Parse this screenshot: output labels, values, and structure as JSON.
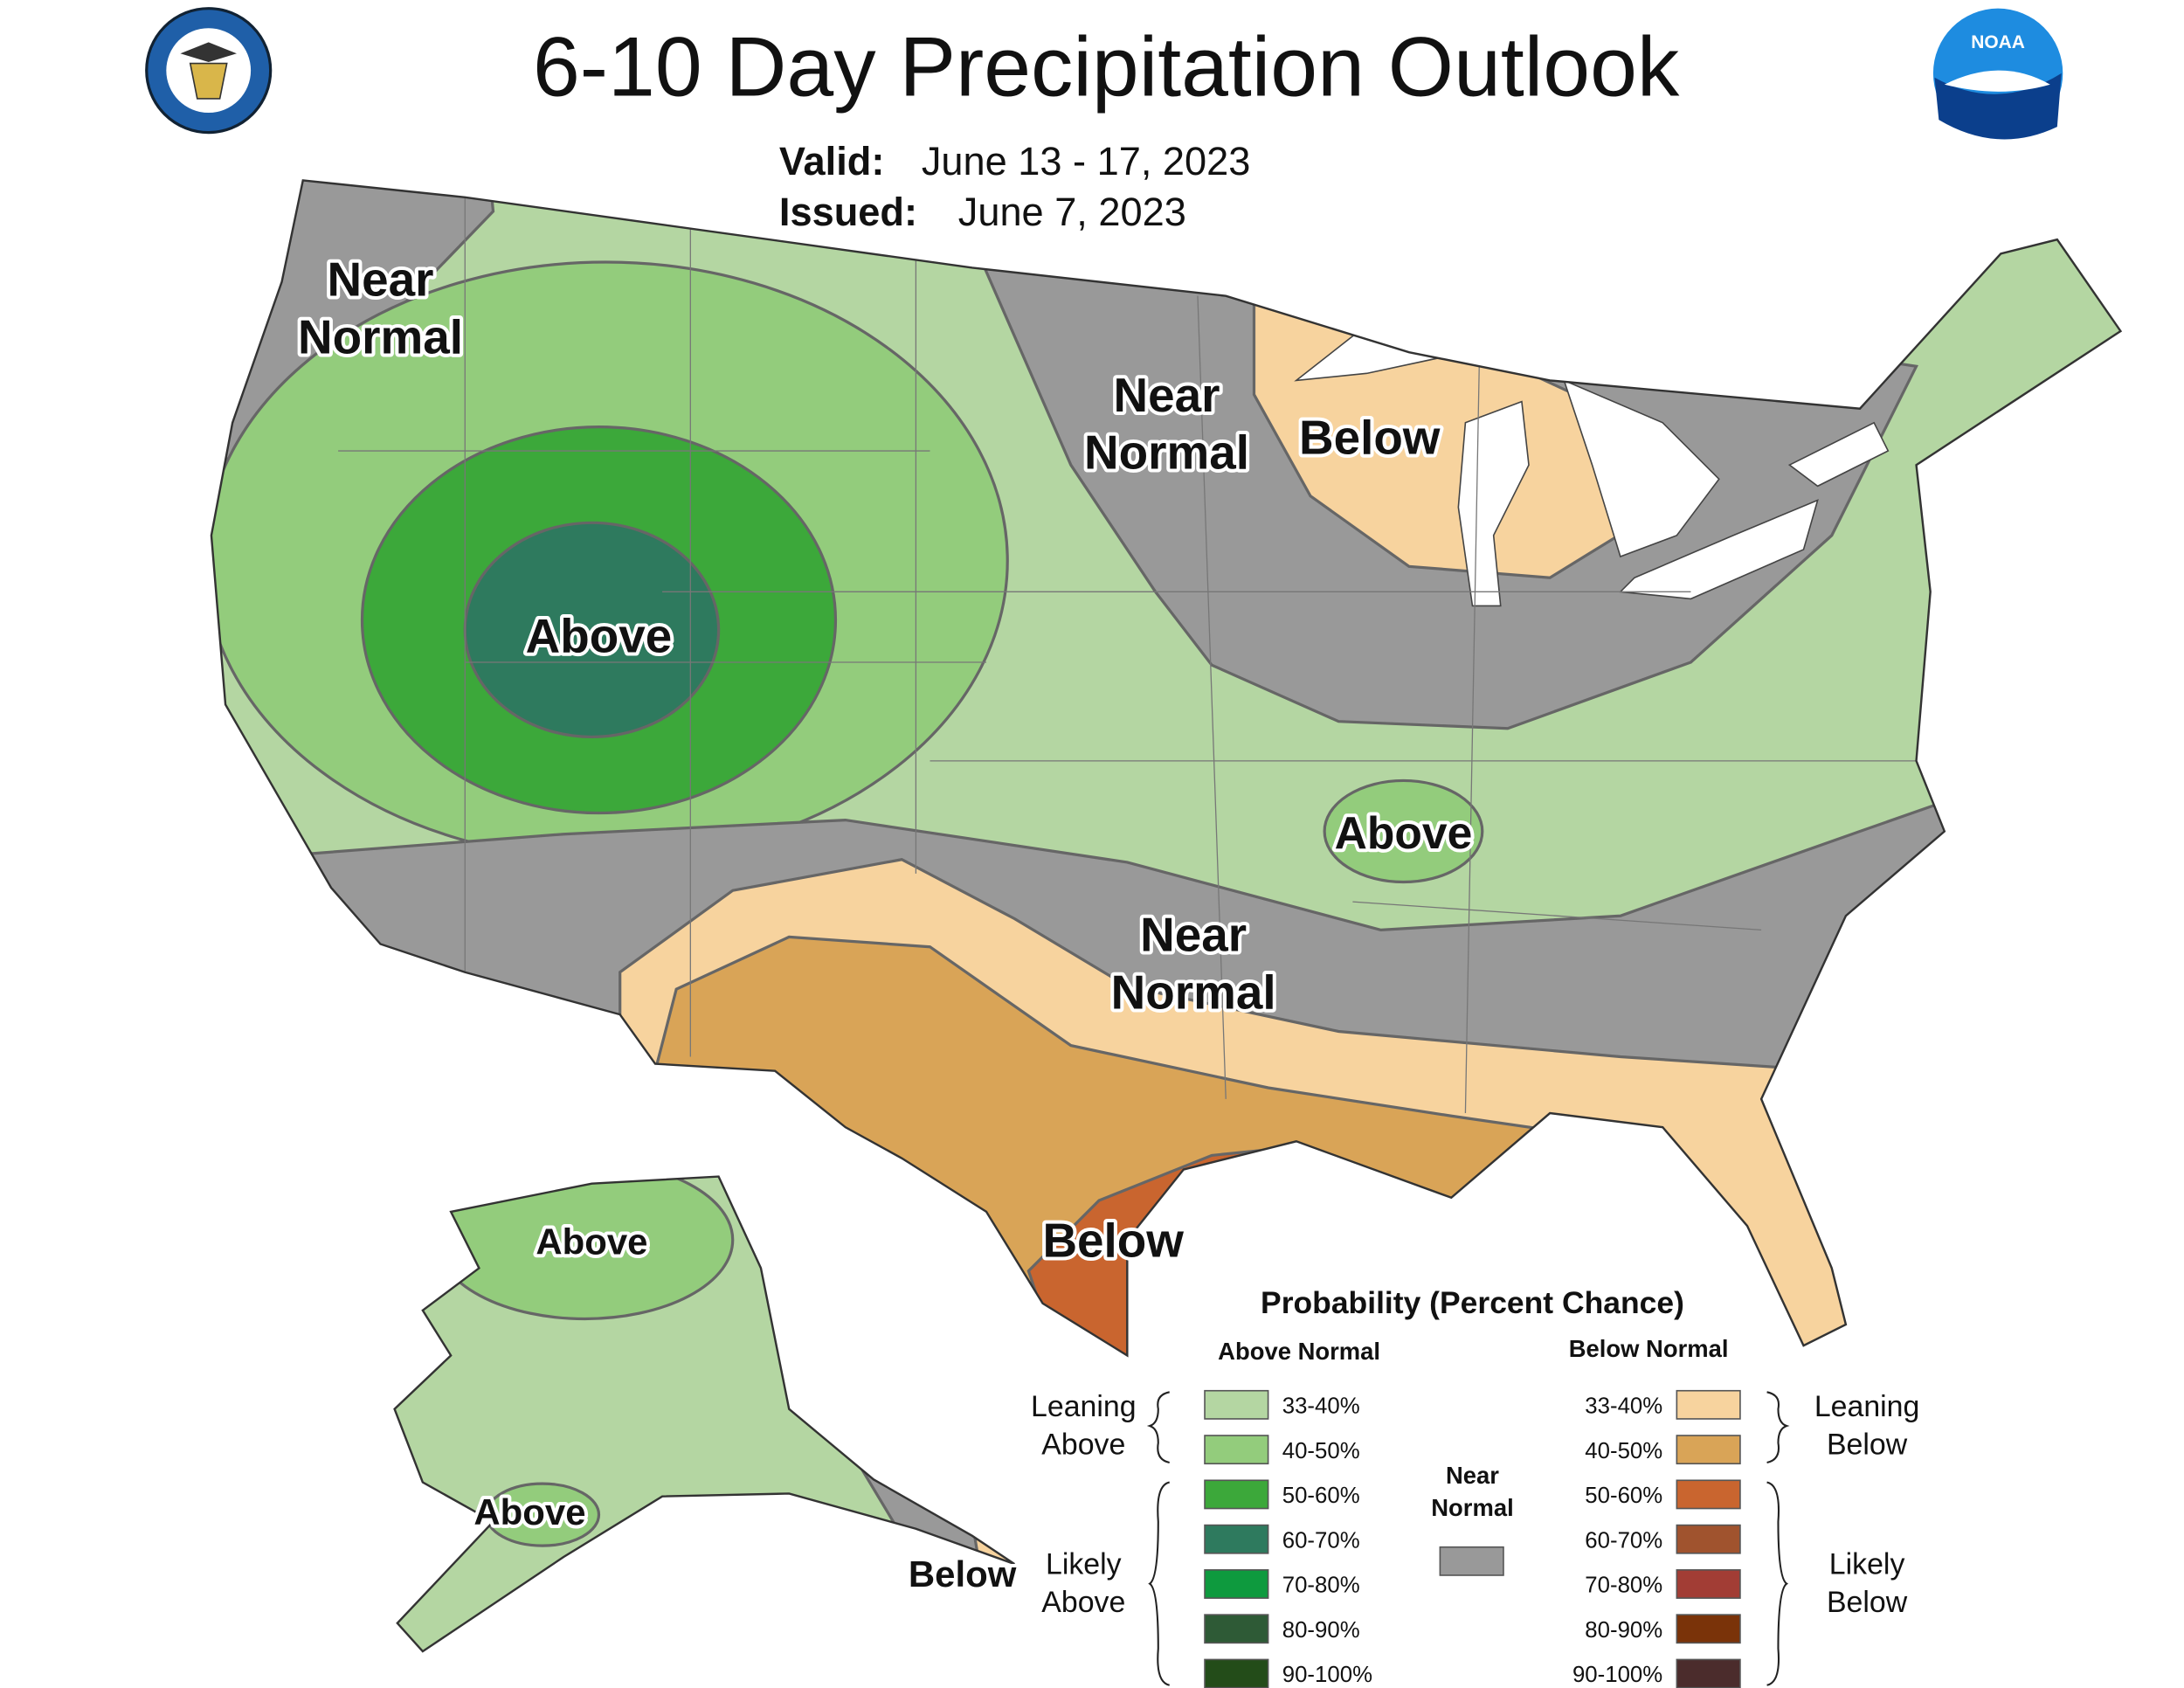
{
  "header": {
    "title": "6-10 Day Precipitation Outlook",
    "valid_label": "Valid:",
    "valid_value": "June 13 - 17, 2023",
    "issued_label": "Issued:",
    "issued_value": "June 7, 2023"
  },
  "logos": {
    "noaa": "NOAA"
  },
  "map_labels": [
    {
      "lines": [
        "Near",
        "Normal"
      ]
    },
    {
      "lines": [
        "Near",
        "Normal"
      ]
    },
    {
      "lines": [
        "Below"
      ]
    },
    {
      "lines": [
        "Above"
      ]
    },
    {
      "lines": [
        "Above"
      ]
    },
    {
      "lines": [
        "Near",
        "Normal"
      ]
    },
    {
      "lines": [
        "Below"
      ]
    },
    {
      "lines": [
        "Above"
      ]
    },
    {
      "lines": [
        "Above"
      ]
    },
    {
      "lines": [
        "Below"
      ]
    }
  ],
  "legend": {
    "title": "Probability (Percent Chance)",
    "above_heading": "Above Normal",
    "below_heading": "Below Normal",
    "above_items": [
      {
        "label": "33-40%",
        "color": "#b4d6a2"
      },
      {
        "label": "40-50%",
        "color": "#93cc7c"
      },
      {
        "label": "50-60%",
        "color": "#3ca83a"
      },
      {
        "label": "60-70%",
        "color": "#2e7a5e"
      },
      {
        "label": "70-80%",
        "color": "#0e9a3e"
      },
      {
        "label": "80-90%",
        "color": "#2e5a36"
      },
      {
        "label": "90-100%",
        "color": "#234c19"
      }
    ],
    "below_items": [
      {
        "label": "33-40%",
        "color": "#f7d39e"
      },
      {
        "label": "40-50%",
        "color": "#d9a457"
      },
      {
        "label": "50-60%",
        "color": "#c9652f"
      },
      {
        "label": "60-70%",
        "color": "#a0532e"
      },
      {
        "label": "70-80%",
        "color": "#a23d35"
      },
      {
        "label": "80-90%",
        "color": "#7a3309"
      },
      {
        "label": "90-100%",
        "color": "#4b2c2c"
      }
    ],
    "near": {
      "lines": [
        "Near",
        "Normal"
      ],
      "color": "#999999"
    },
    "leaning_above": [
      "Leaning",
      "Above"
    ],
    "likely_above": [
      "Likely",
      "Above"
    ],
    "leaning_below": [
      "Leaning",
      "Below"
    ],
    "likely_below": [
      "Likely",
      "Below"
    ]
  }
}
